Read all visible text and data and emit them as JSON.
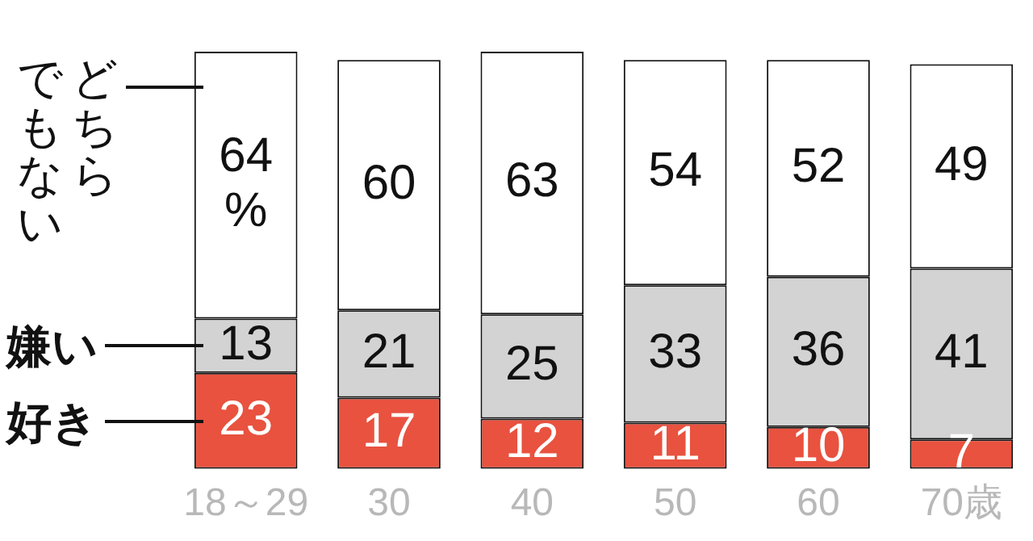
{
  "chart_data": {
    "type": "bar",
    "stacked": true,
    "categories": [
      "18～29",
      "30",
      "40",
      "50",
      "60",
      "70歳"
    ],
    "series": [
      {
        "name": "好き",
        "color": "#e8523f",
        "values": [
          23,
          17,
          12,
          11,
          10,
          7
        ]
      },
      {
        "name": "嫌い",
        "color": "#d3d3d3",
        "values": [
          13,
          21,
          25,
          33,
          36,
          41
        ]
      },
      {
        "name": "どちらでもない",
        "color": "#ffffff",
        "values": [
          64,
          60,
          63,
          54,
          52,
          49
        ],
        "value_labels": [
          "64%",
          "60",
          "63",
          "54",
          "52",
          "49"
        ]
      }
    ],
    "data_labels": true,
    "legend": "left",
    "grid": false
  }
}
